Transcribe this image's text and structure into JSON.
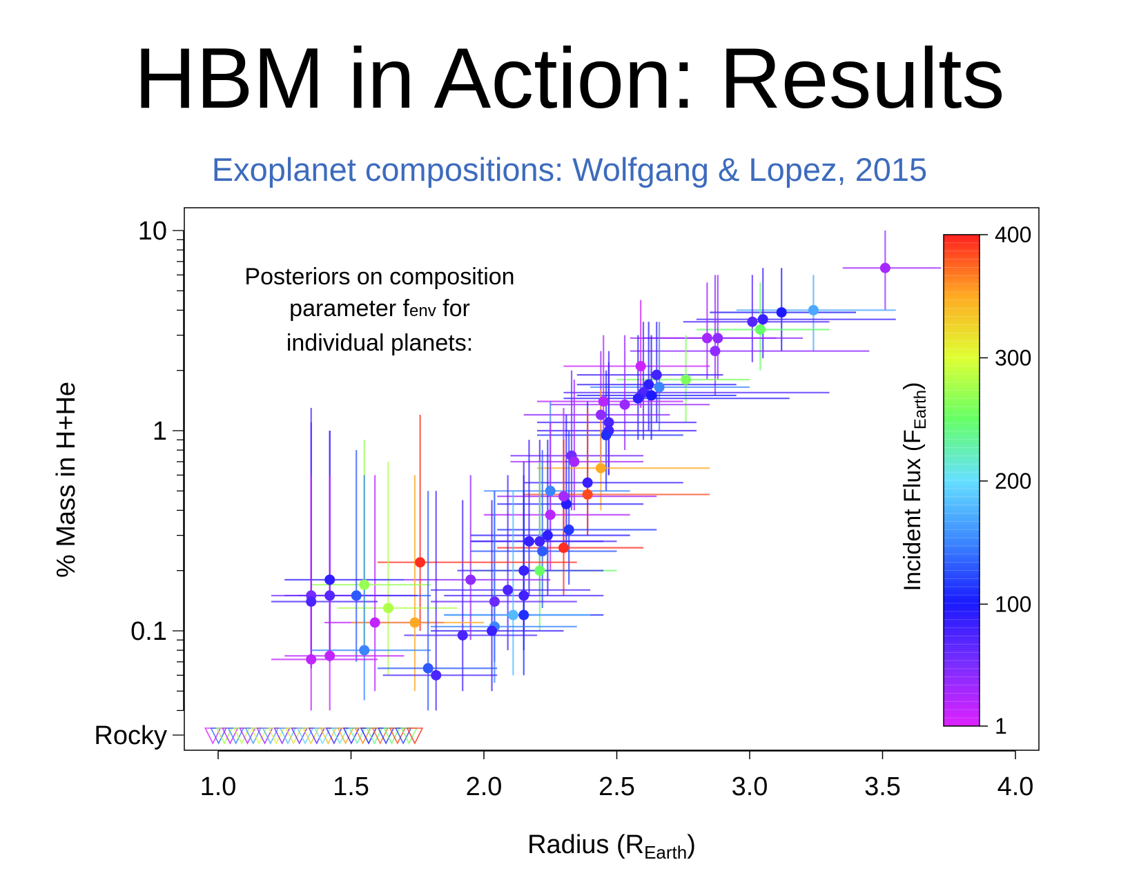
{
  "slide": {
    "title": "HBM in Action: Results",
    "subtitle": "Exoplanet compositions: Wolfgang & Lopez, 2015",
    "title_color": "#000000",
    "subtitle_color": "#3d6bbd"
  },
  "annotation": {
    "line1": "Posteriors on composition",
    "line2_prefix": "parameter f",
    "line2_sub": "env",
    "line2_suffix": " for",
    "line3": "individual planets:"
  },
  "chart_data": {
    "type": "scatter",
    "xlabel": "Radius (R",
    "xlabel_sub": "Earth",
    "xlabel_suffix": ")",
    "ylabel": "% Mass in H+He",
    "xlim": [
      0.9,
      4.1
    ],
    "ylim_log": [
      0.04,
      12
    ],
    "y_scale": "log",
    "x_ticks": [
      "1.0",
      "1.5",
      "2.0",
      "2.5",
      "3.0",
      "3.5",
      "4.0"
    ],
    "y_ticks": [
      "10",
      "1",
      "0.1"
    ],
    "y_rocky_label": "Rocky",
    "colorbar": {
      "label": "Incident Flux (F",
      "label_sub": "Earth",
      "label_suffix": ")",
      "ticks": [
        "400",
        "300",
        "200",
        "100",
        "1"
      ],
      "min": 1,
      "max": 400,
      "colors": [
        "#dd22ff",
        "#7b2dff",
        "#1a1aff",
        "#3b86ff",
        "#66e0ff",
        "#66ff66",
        "#dfff33",
        "#ffaa22",
        "#ff2020"
      ]
    },
    "points": [
      {
        "x": 3.51,
        "y": 6.5,
        "xerr": [
          3.35,
          3.72
        ],
        "yerr": [
          4.0,
          10.0
        ],
        "flux": 30
      },
      {
        "x": 3.24,
        "y": 4.0,
        "xerr": [
          2.95,
          3.55
        ],
        "yerr": [
          2.5,
          6.0
        ],
        "flux": 170
      },
      {
        "x": 3.12,
        "y": 3.9,
        "xerr": [
          2.85,
          3.4
        ],
        "yerr": [
          2.5,
          6.5
        ],
        "flux": 100
      },
      {
        "x": 3.05,
        "y": 3.6,
        "xerr": [
          2.8,
          3.55
        ],
        "yerr": [
          2.3,
          6.5
        ],
        "flux": 85
      },
      {
        "x": 3.01,
        "y": 3.5,
        "xerr": [
          2.75,
          3.3
        ],
        "yerr": [
          2.2,
          6.0
        ],
        "flux": 70
      },
      {
        "x": 3.04,
        "y": 3.2,
        "xerr": [
          2.8,
          3.3
        ],
        "yerr": [
          2.0,
          5.5
        ],
        "flux": 250
      },
      {
        "x": 2.88,
        "y": 2.9,
        "xerr": [
          2.6,
          3.2
        ],
        "yerr": [
          1.8,
          6.0
        ],
        "flux": 40
      },
      {
        "x": 2.84,
        "y": 2.9,
        "xerr": [
          2.55,
          3.1
        ],
        "yerr": [
          1.8,
          5.5
        ],
        "flux": 30
      },
      {
        "x": 2.87,
        "y": 2.5,
        "xerr": [
          2.55,
          3.45
        ],
        "yerr": [
          1.5,
          6.0
        ],
        "flux": 40
      },
      {
        "x": 2.76,
        "y": 1.8,
        "xerr": [
          2.5,
          3.0
        ],
        "yerr": [
          1.1,
          3.0
        ],
        "flux": 260
      },
      {
        "x": 2.65,
        "y": 1.9,
        "xerr": [
          2.35,
          2.9
        ],
        "yerr": [
          1.1,
          3.5
        ],
        "flux": 80
      },
      {
        "x": 2.59,
        "y": 2.1,
        "xerr": [
          2.3,
          2.85
        ],
        "yerr": [
          1.3,
          4.5
        ],
        "flux": 10
      },
      {
        "x": 2.62,
        "y": 1.7,
        "xerr": [
          2.35,
          2.95
        ],
        "yerr": [
          1.0,
          3.5
        ],
        "flux": 90
      },
      {
        "x": 2.66,
        "y": 1.65,
        "xerr": [
          2.4,
          3.0
        ],
        "yerr": [
          1.0,
          3.5
        ],
        "flux": 150
      },
      {
        "x": 2.6,
        "y": 1.55,
        "xerr": [
          2.3,
          3.3
        ],
        "yerr": [
          0.9,
          3.5
        ],
        "flux": 75
      },
      {
        "x": 2.63,
        "y": 1.5,
        "xerr": [
          2.35,
          2.95
        ],
        "yerr": [
          0.9,
          3.0
        ],
        "flux": 100
      },
      {
        "x": 2.58,
        "y": 1.45,
        "xerr": [
          2.3,
          3.15
        ],
        "yerr": [
          0.9,
          3.0
        ],
        "flux": 90
      },
      {
        "x": 2.53,
        "y": 1.35,
        "xerr": [
          2.25,
          2.85
        ],
        "yerr": [
          0.8,
          3.0
        ],
        "flux": 35
      },
      {
        "x": 2.45,
        "y": 1.4,
        "xerr": [
          2.2,
          2.75
        ],
        "yerr": [
          0.9,
          3.0
        ],
        "flux": 20
      },
      {
        "x": 2.44,
        "y": 1.2,
        "xerr": [
          2.15,
          2.7
        ],
        "yerr": [
          0.7,
          2.5
        ],
        "flux": 40
      },
      {
        "x": 2.47,
        "y": 1.1,
        "xerr": [
          2.2,
          2.8
        ],
        "yerr": [
          0.6,
          2.5
        ],
        "flux": 75
      },
      {
        "x": 2.47,
        "y": 1.0,
        "xerr": [
          2.2,
          2.8
        ],
        "yerr": [
          0.6,
          2.2
        ],
        "flux": 80
      },
      {
        "x": 2.46,
        "y": 0.95,
        "xerr": [
          2.2,
          2.75
        ],
        "yerr": [
          0.5,
          2.0
        ],
        "flux": 110
      },
      {
        "x": 2.33,
        "y": 0.75,
        "xerr": [
          2.1,
          2.6
        ],
        "yerr": [
          0.4,
          2.0
        ],
        "flux": 55
      },
      {
        "x": 2.34,
        "y": 0.7,
        "xerr": [
          2.1,
          2.6
        ],
        "yerr": [
          0.4,
          1.8
        ],
        "flux": 30
      },
      {
        "x": 2.44,
        "y": 0.65,
        "xerr": [
          2.2,
          2.85
        ],
        "yerr": [
          0.4,
          1.6
        ],
        "flux": 350
      },
      {
        "x": 2.39,
        "y": 0.55,
        "xerr": [
          2.15,
          2.75
        ],
        "yerr": [
          0.3,
          1.4
        ],
        "flux": 85
      },
      {
        "x": 2.39,
        "y": 0.48,
        "xerr": [
          2.15,
          2.85
        ],
        "yerr": [
          0.3,
          1.3
        ],
        "flux": 385
      },
      {
        "x": 2.31,
        "y": 0.43,
        "xerr": [
          2.05,
          2.6
        ],
        "yerr": [
          0.25,
          1.2
        ],
        "flux": 95
      },
      {
        "x": 2.3,
        "y": 0.47,
        "xerr": [
          2.05,
          2.65
        ],
        "yerr": [
          0.25,
          1.3
        ],
        "flux": 30
      },
      {
        "x": 2.25,
        "y": 0.5,
        "xerr": [
          2.0,
          2.55
        ],
        "yerr": [
          0.3,
          1.4
        ],
        "flux": 150
      },
      {
        "x": 2.25,
        "y": 0.38,
        "xerr": [
          2.0,
          2.55
        ],
        "yerr": [
          0.2,
          1.1
        ],
        "flux": 20
      },
      {
        "x": 2.32,
        "y": 0.32,
        "xerr": [
          2.05,
          2.65
        ],
        "yerr": [
          0.17,
          1.0
        ],
        "flux": 115
      },
      {
        "x": 2.3,
        "y": 0.26,
        "xerr": [
          2.05,
          2.6
        ],
        "yerr": [
          0.15,
          0.9
        ],
        "flux": 395
      },
      {
        "x": 2.24,
        "y": 0.3,
        "xerr": [
          1.95,
          2.55
        ],
        "yerr": [
          0.15,
          0.9
        ],
        "flux": 90
      },
      {
        "x": 2.21,
        "y": 0.28,
        "xerr": [
          1.95,
          2.5
        ],
        "yerr": [
          0.15,
          0.9
        ],
        "flux": 80
      },
      {
        "x": 2.17,
        "y": 0.28,
        "xerr": [
          1.95,
          2.45
        ],
        "yerr": [
          0.15,
          0.9
        ],
        "flux": 85
      },
      {
        "x": 2.22,
        "y": 0.25,
        "xerr": [
          1.95,
          2.5
        ],
        "yerr": [
          0.13,
          0.8
        ],
        "flux": 130
      },
      {
        "x": 2.21,
        "y": 0.2,
        "xerr": [
          1.95,
          2.5
        ],
        "yerr": [
          0.1,
          0.7
        ],
        "flux": 250
      },
      {
        "x": 2.15,
        "y": 0.2,
        "xerr": [
          1.9,
          2.45
        ],
        "yerr": [
          0.1,
          0.7
        ],
        "flux": 85
      },
      {
        "x": 2.15,
        "y": 0.15,
        "xerr": [
          1.85,
          2.45
        ],
        "yerr": [
          0.08,
          0.6
        ],
        "flux": 80
      },
      {
        "x": 2.09,
        "y": 0.16,
        "xerr": [
          1.8,
          2.4
        ],
        "yerr": [
          0.08,
          0.6
        ],
        "flux": 75
      },
      {
        "x": 2.04,
        "y": 0.14,
        "xerr": [
          1.8,
          2.35
        ],
        "yerr": [
          0.07,
          0.5
        ],
        "flux": 60
      },
      {
        "x": 2.15,
        "y": 0.12,
        "xerr": [
          1.85,
          2.45
        ],
        "yerr": [
          0.06,
          0.5
        ],
        "flux": 110
      },
      {
        "x": 2.11,
        "y": 0.12,
        "xerr": [
          1.85,
          2.4
        ],
        "yerr": [
          0.06,
          0.5
        ],
        "flux": 180
      },
      {
        "x": 2.04,
        "y": 0.105,
        "xerr": [
          1.8,
          2.35
        ],
        "yerr": [
          0.055,
          0.5
        ],
        "flux": 150
      },
      {
        "x": 2.03,
        "y": 0.1,
        "xerr": [
          1.8,
          2.3
        ],
        "yerr": [
          0.05,
          0.45
        ],
        "flux": 85
      },
      {
        "x": 1.92,
        "y": 0.095,
        "xerr": [
          1.7,
          2.2
        ],
        "yerr": [
          0.05,
          0.45
        ],
        "flux": 75
      },
      {
        "x": 1.95,
        "y": 0.18,
        "xerr": [
          1.7,
          2.25
        ],
        "yerr": [
          0.09,
          0.6
        ],
        "flux": 40
      },
      {
        "x": 1.76,
        "y": 0.22,
        "xerr": [
          1.6,
          2.35
        ],
        "yerr": [
          0.1,
          1.2
        ],
        "flux": 395
      },
      {
        "x": 1.64,
        "y": 0.13,
        "xerr": [
          1.45,
          1.9
        ],
        "yerr": [
          0.06,
          0.7
        ],
        "flux": 280
      },
      {
        "x": 1.59,
        "y": 0.11,
        "xerr": [
          1.4,
          1.85
        ],
        "yerr": [
          0.05,
          0.6
        ],
        "flux": 15
      },
      {
        "x": 1.74,
        "y": 0.11,
        "xerr": [
          1.5,
          2.0
        ],
        "yerr": [
          0.05,
          0.6
        ],
        "flux": 350
      },
      {
        "x": 1.55,
        "y": 0.17,
        "xerr": [
          1.35,
          1.8
        ],
        "yerr": [
          0.08,
          0.9
        ],
        "flux": 270
      },
      {
        "x": 1.52,
        "y": 0.15,
        "xerr": [
          1.3,
          1.8
        ],
        "yerr": [
          0.07,
          0.8
        ],
        "flux": 130
      },
      {
        "x": 1.42,
        "y": 0.18,
        "xerr": [
          1.25,
          1.7
        ],
        "yerr": [
          0.08,
          1.0
        ],
        "flux": 90
      },
      {
        "x": 1.42,
        "y": 0.15,
        "xerr": [
          1.25,
          1.75
        ],
        "yerr": [
          0.07,
          1.0
        ],
        "flux": 70
      },
      {
        "x": 1.35,
        "y": 0.15,
        "xerr": [
          1.2,
          1.65
        ],
        "yerr": [
          0.07,
          1.1
        ],
        "flux": 55
      },
      {
        "x": 1.35,
        "y": 0.14,
        "xerr": [
          1.2,
          1.6
        ],
        "yerr": [
          0.065,
          1.3
        ],
        "flux": 75
      },
      {
        "x": 1.55,
        "y": 0.08,
        "xerr": [
          1.35,
          1.8
        ],
        "yerr": [
          0.045,
          0.6
        ],
        "flux": 150
      },
      {
        "x": 1.42,
        "y": 0.075,
        "xerr": [
          1.25,
          1.7
        ],
        "yerr": [
          0.04,
          0.6
        ],
        "flux": 15
      },
      {
        "x": 1.35,
        "y": 0.072,
        "xerr": [
          1.2,
          1.6
        ],
        "yerr": [
          0.04,
          0.6
        ],
        "flux": 15
      },
      {
        "x": 1.79,
        "y": 0.065,
        "xerr": [
          1.6,
          2.05
        ],
        "yerr": [
          0.04,
          0.5
        ],
        "flux": 130
      },
      {
        "x": 1.82,
        "y": 0.06,
        "xerr": [
          1.62,
          2.05
        ],
        "yerr": [
          0.04,
          0.5
        ],
        "flux": 75
      }
    ],
    "rocky_markers": {
      "x_start": 0.98,
      "x_end": 1.74,
      "count": 36
    }
  }
}
